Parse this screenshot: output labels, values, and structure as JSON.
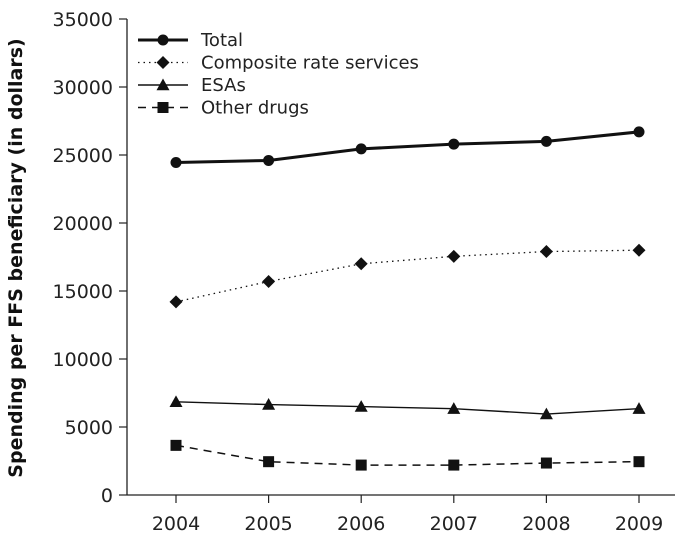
{
  "chart_data": {
    "type": "line",
    "title": "",
    "xlabel": "",
    "ylabel": "Spending per FFS beneficiary (in dollars)",
    "categories": [
      "2004",
      "2005",
      "2006",
      "2007",
      "2008",
      "2009"
    ],
    "ylim": [
      0,
      35000
    ],
    "yticks": [
      "0",
      "5000",
      "10000",
      "15000",
      "20000",
      "25000",
      "30000",
      "35000"
    ],
    "grid": false,
    "legend_position": "top-left",
    "series": [
      {
        "name": "Total",
        "values": [
          24450,
          24600,
          25450,
          25800,
          26000,
          26700
        ],
        "style": "solid-thick",
        "marker": "circle",
        "color": "#111111"
      },
      {
        "name": "Composite rate services",
        "values": [
          14200,
          15700,
          17000,
          17550,
          17900,
          18000
        ],
        "style": "dotted",
        "marker": "diamond",
        "color": "#111111"
      },
      {
        "name": "ESAs",
        "values": [
          6850,
          6650,
          6500,
          6350,
          5950,
          6350
        ],
        "style": "solid-thin",
        "marker": "triangle",
        "color": "#111111"
      },
      {
        "name": "Other drugs",
        "values": [
          3650,
          2450,
          2200,
          2200,
          2350,
          2450
        ],
        "style": "dashed",
        "marker": "square",
        "color": "#111111"
      }
    ]
  }
}
